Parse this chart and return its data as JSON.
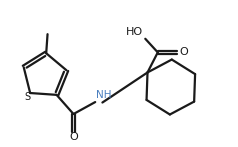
{
  "bg_color": "#ffffff",
  "line_color": "#1a1a1a",
  "bond_lw": 1.6,
  "figsize": [
    2.38,
    1.47
  ],
  "dpi": 100,
  "s_color": "#1a1a1a",
  "o_color": "#1a1a1a",
  "nh_color": "#4a7fbf",
  "ho_color": "#1a1a1a",
  "xlim": [
    0.0,
    10.5
  ],
  "ylim": [
    0.5,
    6.8
  ]
}
